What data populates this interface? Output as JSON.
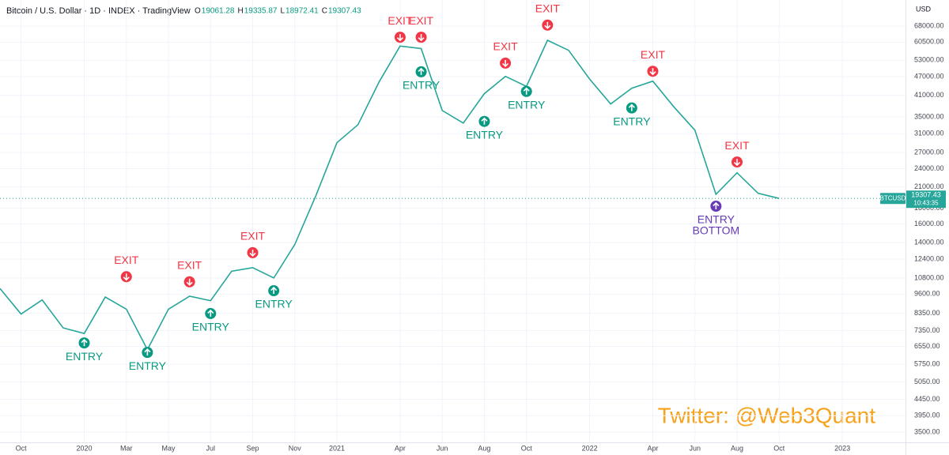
{
  "chart_data": {
    "type": "line",
    "title": "Bitcoin / U.S. Dollar · 1D · INDEX · TradingView",
    "ohlc": [
      {
        "key": "O",
        "value": 19061.28
      },
      {
        "key": "H",
        "value": 19335.87
      },
      {
        "key": "L",
        "value": 18972.41
      },
      {
        "key": "C",
        "value": 19307.43
      }
    ],
    "currency": "USD",
    "watermark": "Twitter: @Web3Quant",
    "countdown": "10:43:35",
    "log_scale": true,
    "grid": true,
    "x": [
      "2019-09",
      "2019-10",
      "2019-11",
      "2019-12",
      "2020-01",
      "2020-02",
      "2020-03",
      "2020-04",
      "2020-05",
      "2020-06",
      "2020-07",
      "2020-08",
      "2020-09",
      "2020-10",
      "2020-11",
      "2020-12",
      "2021-01",
      "2021-02",
      "2021-03",
      "2021-04",
      "2021-05",
      "2021-06",
      "2021-07",
      "2021-08",
      "2021-09",
      "2021-10",
      "2021-11",
      "2021-12",
      "2022-01",
      "2022-02",
      "2022-03",
      "2022-04",
      "2022-05",
      "2022-06",
      "2022-07",
      "2022-08",
      "2022-09",
      "2022-10"
    ],
    "series": [
      {
        "name": "BTCUSD",
        "color": "#26a69a",
        "values": [
          10000,
          8300,
          9200,
          7500,
          7200,
          9400,
          8600,
          6400,
          8600,
          9450,
          9150,
          11350,
          11650,
          10800,
          13800,
          19700,
          29000,
          33100,
          45200,
          58800,
          57700,
          36700,
          33500,
          41500,
          47100,
          43800,
          61300,
          57000,
          46200,
          38500,
          43200,
          45500,
          37700,
          31800,
          19900,
          23300,
          20050,
          19307.43
        ]
      }
    ],
    "xlim": [
      "2019-09",
      "2023-04"
    ],
    "xticks": [
      {
        "value": "2019-10",
        "label": "Oct"
      },
      {
        "value": "2020-01",
        "label": "2020"
      },
      {
        "value": "2020-03",
        "label": "Mar"
      },
      {
        "value": "2020-05",
        "label": "May"
      },
      {
        "value": "2020-07",
        "label": "Jul"
      },
      {
        "value": "2020-09",
        "label": "Sep"
      },
      {
        "value": "2020-11",
        "label": "Nov"
      },
      {
        "value": "2021-01",
        "label": "2021"
      },
      {
        "value": "2021-04",
        "label": "Apr"
      },
      {
        "value": "2021-06",
        "label": "Jun"
      },
      {
        "value": "2021-08",
        "label": "Aug"
      },
      {
        "value": "2021-10",
        "label": "Oct"
      },
      {
        "value": "2022-01",
        "label": "2022"
      },
      {
        "value": "2022-04",
        "label": "Apr"
      },
      {
        "value": "2022-06",
        "label": "Jun"
      },
      {
        "value": "2022-08",
        "label": "Aug"
      },
      {
        "value": "2022-10",
        "label": "Oct"
      },
      {
        "value": "2023-01",
        "label": "2023"
      }
    ],
    "ylim": [
      3250,
      82300
    ],
    "yticks": [
      {
        "value": 3500,
        "label": "3500.00"
      },
      {
        "value": 3950,
        "label": "3950.00"
      },
      {
        "value": 4450,
        "label": "4450.00"
      },
      {
        "value": 5050,
        "label": "5050.00"
      },
      {
        "value": 5750,
        "label": "5750.00"
      },
      {
        "value": 6550,
        "label": "6550.00"
      },
      {
        "value": 7350,
        "label": "7350.00"
      },
      {
        "value": 8350,
        "label": "8350.00"
      },
      {
        "value": 9600,
        "label": "9600.00"
      },
      {
        "value": 10800,
        "label": "10800.00"
      },
      {
        "value": 12400,
        "label": "12400.00"
      },
      {
        "value": 14000,
        "label": "14000.00"
      },
      {
        "value": 16000,
        "label": "16000.00"
      },
      {
        "value": 18000,
        "label": "18000.00"
      },
      {
        "value": 21000,
        "label": "21000.00"
      },
      {
        "value": 24000,
        "label": "24000.00"
      },
      {
        "value": 27000,
        "label": "27000.00"
      },
      {
        "value": 31000,
        "label": "31000.00"
      },
      {
        "value": 35000,
        "label": "35000.00"
      },
      {
        "value": 41000,
        "label": "41000.00"
      },
      {
        "value": 47000,
        "label": "47000.00"
      },
      {
        "value": 53000,
        "label": "53000.00"
      },
      {
        "value": 60500,
        "label": "60500.00"
      },
      {
        "value": 68000,
        "label": "68000.00"
      }
    ],
    "annotations": [
      {
        "text": "ENTRY",
        "x": "2020-01",
        "y": 6720,
        "color": "#089981",
        "arrow": "up"
      },
      {
        "text": "EXIT",
        "x": "2020-03",
        "y": 10900,
        "color": "#f23645",
        "arrow": "down"
      },
      {
        "text": "ENTRY",
        "x": "2020-04",
        "y": 6270,
        "color": "#089981",
        "arrow": "up"
      },
      {
        "text": "EXIT",
        "x": "2020-06",
        "y": 10500,
        "color": "#f23645",
        "arrow": "down"
      },
      {
        "text": "ENTRY",
        "x": "2020-07",
        "y": 8330,
        "color": "#089981",
        "arrow": "up"
      },
      {
        "text": "EXIT",
        "x": "2020-09",
        "y": 12990,
        "color": "#f23645",
        "arrow": "down"
      },
      {
        "text": "ENTRY",
        "x": "2020-10",
        "y": 9840,
        "color": "#089981",
        "arrow": "up"
      },
      {
        "text": "EXIT",
        "x": "2021-04",
        "y": 62700,
        "color": "#f23645",
        "arrow": "down"
      },
      {
        "text": "EXIT",
        "x": "2021-05",
        "y": 62700,
        "color": "#f23645",
        "arrow": "down"
      },
      {
        "text": "ENTRY",
        "x": "2021-05",
        "y": 48700,
        "color": "#089981",
        "arrow": "up"
      },
      {
        "text": "ENTRY",
        "x": "2021-08",
        "y": 33900,
        "color": "#089981",
        "arrow": "up"
      },
      {
        "text": "EXIT",
        "x": "2021-09",
        "y": 51900,
        "color": "#f23645",
        "arrow": "down"
      },
      {
        "text": "ENTRY",
        "x": "2021-10",
        "y": 42200,
        "color": "#089981",
        "arrow": "up"
      },
      {
        "text": "EXIT",
        "x": "2021-11",
        "y": 68500,
        "color": "#f23645",
        "arrow": "down"
      },
      {
        "text": "ENTRY",
        "x": "2022-03",
        "y": 37400,
        "color": "#089981",
        "arrow": "up"
      },
      {
        "text": "EXIT",
        "x": "2022-04",
        "y": 48900,
        "color": "#f23645",
        "arrow": "down"
      },
      {
        "text": "ENTRY",
        "sub": "BOTTOM",
        "x": "2022-07",
        "y": 18250,
        "color": "#673ab7",
        "arrow": "up"
      },
      {
        "text": "EXIT",
        "x": "2022-08",
        "y": 25200,
        "color": "#f23645",
        "arrow": "down"
      }
    ]
  }
}
